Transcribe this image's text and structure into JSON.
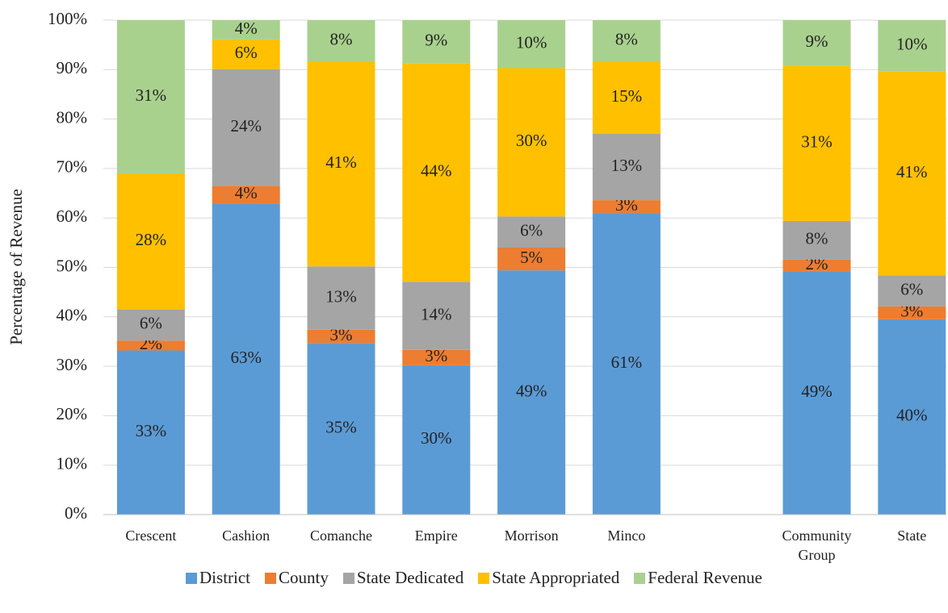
{
  "chart_data": {
    "type": "stacked_bar",
    "y_label": "Percentage of Revenue",
    "categories": [
      "Crescent",
      "Cashion",
      "Comanche",
      "Empire",
      "Morrison",
      "Minco",
      null,
      "Community Group",
      "State"
    ],
    "series": [
      {
        "name": "District",
        "color": "#5b9bd5",
        "values": [
          33.2,
          62.9,
          34.7,
          30.2,
          49.4,
          61.0,
          null,
          49.2,
          39.5
        ],
        "value_labels": [
          "33%",
          "63%",
          "35%",
          "30%",
          "49%",
          "61%",
          null,
          "49%",
          "40%"
        ]
      },
      {
        "name": "County",
        "color": "#ed7d31",
        "values": [
          2.0,
          3.6,
          2.7,
          3.1,
          4.6,
          2.6,
          null,
          2.4,
          2.6
        ],
        "value_labels": [
          "2%",
          "4%",
          "3%",
          "3%",
          "5%",
          "3%",
          null,
          "2%",
          "3%"
        ]
      },
      {
        "name": "State Dedicated",
        "color": "#a5a5a5",
        "values": [
          6.3,
          23.6,
          12.8,
          13.8,
          6.3,
          13.4,
          null,
          7.8,
          6.3
        ],
        "value_labels": [
          "6%",
          "24%",
          "13%",
          "14%",
          "6%",
          "13%",
          null,
          "8%",
          "6%"
        ]
      },
      {
        "name": "State Appropriated",
        "color": "#ffc000",
        "values": [
          27.5,
          6.0,
          41.4,
          44.2,
          30.0,
          14.6,
          null,
          31.4,
          41.2
        ],
        "value_labels": [
          "28%",
          "6%",
          "41%",
          "44%",
          "30%",
          "15%",
          null,
          "31%",
          "41%"
        ]
      },
      {
        "name": "Federal Revenue",
        "color": "#a9d18e",
        "values": [
          31.0,
          3.9,
          8.4,
          8.7,
          9.7,
          8.4,
          null,
          9.2,
          10.4
        ],
        "value_labels": [
          "31%",
          "4%",
          "8%",
          "9%",
          "10%",
          "8%",
          null,
          "9%",
          "10%"
        ]
      }
    ],
    "ylim": [
      0,
      100
    ],
    "yticks": [
      {
        "value": 0,
        "label": "0%"
      },
      {
        "value": 10,
        "label": "10%"
      },
      {
        "value": 20,
        "label": "20%"
      },
      {
        "value": 30,
        "label": "30%"
      },
      {
        "value": 40,
        "label": "40%"
      },
      {
        "value": 50,
        "label": "50%"
      },
      {
        "value": 60,
        "label": "60%"
      },
      {
        "value": 70,
        "label": "70%"
      },
      {
        "value": 80,
        "label": "80%"
      },
      {
        "value": 90,
        "label": "90%"
      },
      {
        "value": 100,
        "label": "100%"
      }
    ],
    "grid": true,
    "legend": "bottom"
  }
}
